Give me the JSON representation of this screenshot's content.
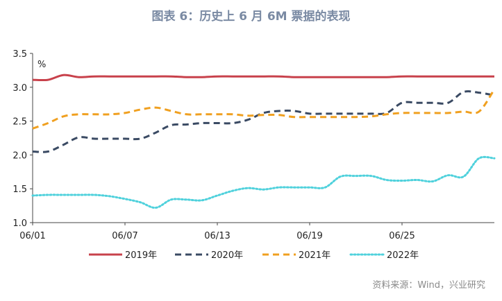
{
  "title": "图表 6：历史上 6 月 6M 票据的表现",
  "source": "资料来源：Wind，兴业研究",
  "chart_data": {
    "type": "line",
    "unit_label": "%",
    "x_ticks": [
      "06/01",
      "06/07",
      "06/13",
      "06/19",
      "06/25"
    ],
    "y_ticks": [
      "1.0",
      "1.5",
      "2.0",
      "2.5",
      "3.0",
      "3.5"
    ],
    "ylim": [
      1.0,
      3.5
    ],
    "x_days": [
      1,
      31
    ],
    "grid": false,
    "legend_position": "bottom",
    "series": [
      {
        "name": "2019年",
        "color": "#c8414b",
        "style": "solid",
        "x": [
          1,
          2,
          3,
          4,
          5,
          6,
          7,
          8,
          9,
          10,
          11,
          12,
          13,
          14,
          15,
          16,
          17,
          18,
          19,
          20,
          21,
          22,
          23,
          24,
          25,
          26,
          27,
          28,
          29,
          30,
          31
        ],
        "values": [
          3.11,
          3.11,
          3.18,
          3.15,
          3.16,
          3.16,
          3.16,
          3.16,
          3.16,
          3.16,
          3.15,
          3.15,
          3.16,
          3.16,
          3.16,
          3.16,
          3.16,
          3.15,
          3.15,
          3.15,
          3.15,
          3.15,
          3.15,
          3.15,
          3.16,
          3.16,
          3.16,
          3.16,
          3.16,
          3.16,
          3.16
        ]
      },
      {
        "name": "2020年",
        "color": "#3a4a63",
        "style": "dashed",
        "x": [
          1,
          2,
          3,
          4,
          5,
          6,
          7,
          8,
          9,
          10,
          11,
          12,
          13,
          14,
          15,
          16,
          17,
          18,
          19,
          20,
          21,
          22,
          23,
          24,
          25,
          26,
          27,
          28,
          29,
          30,
          31
        ],
        "values": [
          2.05,
          2.05,
          2.15,
          2.26,
          2.24,
          2.24,
          2.24,
          2.24,
          2.33,
          2.44,
          2.45,
          2.47,
          2.47,
          2.47,
          2.52,
          2.62,
          2.65,
          2.65,
          2.61,
          2.61,
          2.61,
          2.61,
          2.61,
          2.62,
          2.77,
          2.77,
          2.77,
          2.77,
          2.93,
          2.92,
          2.88
        ]
      },
      {
        "name": "2021年",
        "color": "#f0a020",
        "style": "dashed",
        "x": [
          1,
          2,
          3,
          4,
          5,
          6,
          7,
          8,
          9,
          10,
          11,
          12,
          13,
          14,
          15,
          16,
          17,
          18,
          19,
          20,
          21,
          22,
          23,
          24,
          25,
          26,
          27,
          28,
          29,
          30,
          31
        ],
        "values": [
          2.39,
          2.47,
          2.57,
          2.6,
          2.6,
          2.6,
          2.62,
          2.67,
          2.7,
          2.65,
          2.6,
          2.6,
          2.6,
          2.6,
          2.58,
          2.59,
          2.59,
          2.56,
          2.56,
          2.56,
          2.56,
          2.56,
          2.57,
          2.6,
          2.62,
          2.62,
          2.62,
          2.62,
          2.64,
          2.64,
          2.97
        ]
      },
      {
        "name": "2022年",
        "color": "#4fd1dc",
        "style": "dotted",
        "x": [
          1,
          2,
          3,
          4,
          5,
          6,
          7,
          8,
          9,
          10,
          11,
          12,
          13,
          14,
          15,
          16,
          17,
          18,
          19,
          20,
          21,
          22,
          23,
          24,
          25,
          26,
          27,
          28,
          29,
          30,
          31
        ],
        "values": [
          1.4,
          1.41,
          1.41,
          1.41,
          1.41,
          1.39,
          1.35,
          1.3,
          1.22,
          1.34,
          1.34,
          1.33,
          1.4,
          1.47,
          1.51,
          1.49,
          1.52,
          1.52,
          1.52,
          1.52,
          1.68,
          1.69,
          1.69,
          1.63,
          1.62,
          1.63,
          1.61,
          1.7,
          1.68,
          1.95,
          1.95
        ]
      }
    ]
  }
}
